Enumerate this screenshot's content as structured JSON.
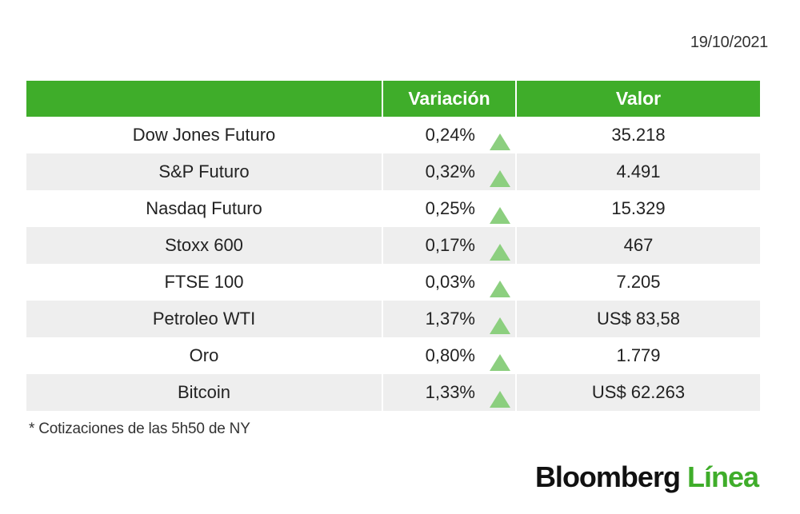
{
  "date": "19/10/2021",
  "table": {
    "headers": {
      "name": "",
      "variation": "Variación",
      "value": "Valor"
    },
    "rows": [
      {
        "name": "Dow Jones Futuro",
        "variation": "0,24%",
        "value": "35.218",
        "trend": "up-arrow-icon"
      },
      {
        "name": "S&P Futuro",
        "variation": "0,32%",
        "value": "4.491",
        "trend": "up-arrow-icon"
      },
      {
        "name": "Nasdaq Futuro",
        "variation": "0,25%",
        "value": "15.329",
        "trend": "up-arrow-icon"
      },
      {
        "name": "Stoxx 600",
        "variation": "0,17%",
        "value": "467",
        "trend": "up-arrow-icon"
      },
      {
        "name": "FTSE 100",
        "variation": "0,03%",
        "value": "7.205",
        "trend": "up-arrow-icon"
      },
      {
        "name": "Petroleo WTI",
        "variation": "1,37%",
        "value": "US$ 83,58",
        "trend": "up-arrow-icon"
      },
      {
        "name": "Oro",
        "variation": "0,80%",
        "value": "1.779",
        "trend": "up-arrow-icon"
      },
      {
        "name": "Bitcoin",
        "variation": "1,33%",
        "value": "US$ 62.263",
        "trend": "up-arrow-icon"
      }
    ]
  },
  "footnote": "* Cotizaciones de las 5h50 de NY",
  "logo": {
    "main": "Bloomberg",
    "accent": "Línea"
  },
  "colors": {
    "header_green": "#3fad2a",
    "arrow_green": "#8ccf7f",
    "row_alt": "#eeeeee"
  }
}
